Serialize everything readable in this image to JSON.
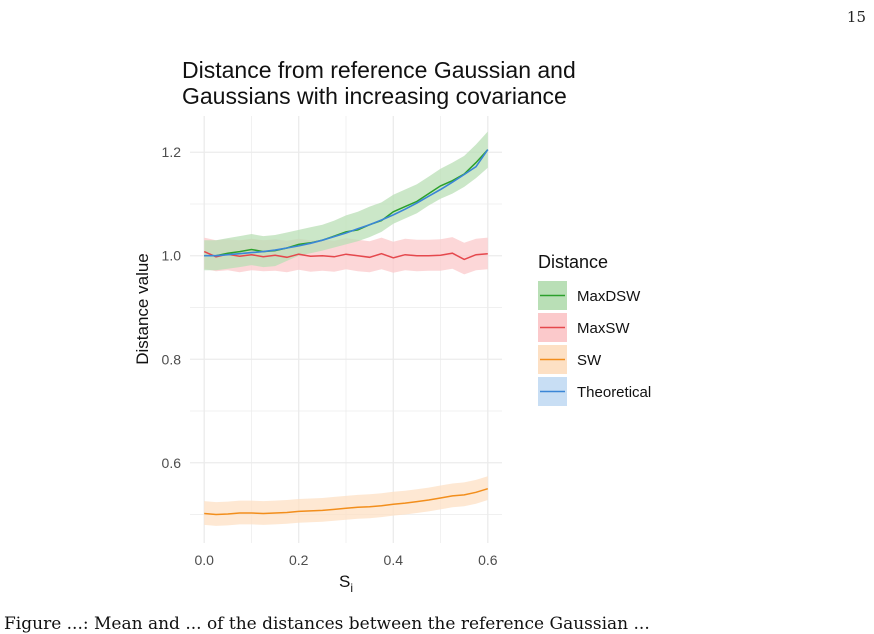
{
  "page": {
    "page_number": "15",
    "caption_fragment": "Figure ...: Mean and ... of the distances between the reference Gaussian ..."
  },
  "colors": {
    "MaxDSW": "#2ca02c",
    "MaxSW": "#e5484d",
    "SW": "#f28e1c",
    "Theoretical": "#3b86d6",
    "MaxDSW_band": "#b9dfb6",
    "MaxSW_band": "#fbc9cb",
    "SW_band": "#fde0c4",
    "Theoretical_band": "#c8def4",
    "grid": "#ebebeb"
  },
  "chart_data": {
    "type": "line",
    "title": [
      "Distance from reference Gaussian and",
      "Gaussians with increasing covariance"
    ],
    "xlabel": "S",
    "xlabel_sub": "i",
    "ylabel": "Distance value",
    "xlim": [
      -0.03,
      0.63
    ],
    "ylim": [
      0.445,
      1.27
    ],
    "xticks": [
      0.0,
      0.2,
      0.4,
      0.6
    ],
    "xtick_labels": [
      "0.0",
      "0.2",
      "0.4",
      "0.6"
    ],
    "yticks": [
      0.6,
      0.8,
      1.0,
      1.2
    ],
    "ytick_labels": [
      "0.6",
      "0.8",
      "1.0",
      "1.2"
    ],
    "grid": true,
    "legend": {
      "title": "Distance",
      "placement": "right"
    },
    "x": [
      0.0,
      0.025,
      0.05,
      0.075,
      0.1,
      0.125,
      0.15,
      0.175,
      0.2,
      0.225,
      0.25,
      0.275,
      0.3,
      0.325,
      0.35,
      0.375,
      0.4,
      0.425,
      0.45,
      0.475,
      0.5,
      0.525,
      0.55,
      0.575,
      0.6
    ],
    "series": [
      {
        "name": "MaxDSW",
        "values": [
          1.0,
          1.0,
          1.005,
          1.008,
          1.012,
          1.008,
          1.01,
          1.015,
          1.022,
          1.025,
          1.03,
          1.038,
          1.046,
          1.05,
          1.06,
          1.068,
          1.085,
          1.095,
          1.105,
          1.12,
          1.135,
          1.145,
          1.158,
          1.18,
          1.205
        ],
        "lower": [
          0.972,
          0.972,
          0.975,
          0.978,
          0.982,
          0.978,
          0.98,
          0.99,
          1.0,
          1.005,
          1.01,
          1.016,
          1.022,
          1.028,
          1.036,
          1.046,
          1.062,
          1.072,
          1.082,
          1.097,
          1.11,
          1.12,
          1.133,
          1.15,
          1.17
        ],
        "upper": [
          1.03,
          1.03,
          1.034,
          1.038,
          1.042,
          1.038,
          1.04,
          1.045,
          1.05,
          1.055,
          1.06,
          1.068,
          1.078,
          1.085,
          1.095,
          1.103,
          1.118,
          1.128,
          1.138,
          1.153,
          1.168,
          1.18,
          1.193,
          1.215,
          1.24
        ]
      },
      {
        "name": "MaxSW",
        "values": [
          1.008,
          0.998,
          1.003,
          0.999,
          1.002,
          0.998,
          1.001,
          0.997,
          1.003,
          0.999,
          1.0,
          0.998,
          1.003,
          1.0,
          0.997,
          1.004,
          0.996,
          1.002,
          1.0,
          1.0,
          1.001,
          1.005,
          0.993,
          1.002,
          1.004
        ],
        "lower": [
          0.975,
          0.97,
          0.972,
          0.968,
          0.972,
          0.97,
          0.971,
          0.968,
          0.973,
          0.969,
          0.971,
          0.969,
          0.974,
          0.97,
          0.968,
          0.974,
          0.967,
          0.972,
          0.97,
          0.971,
          0.971,
          0.975,
          0.964,
          0.972,
          0.974
        ],
        "upper": [
          1.035,
          1.03,
          1.032,
          1.03,
          1.033,
          1.03,
          1.032,
          1.029,
          1.033,
          1.03,
          1.031,
          1.029,
          1.034,
          1.031,
          1.028,
          1.035,
          1.027,
          1.033,
          1.031,
          1.031,
          1.032,
          1.036,
          1.025,
          1.033,
          1.035
        ]
      },
      {
        "name": "SW",
        "values": [
          0.502,
          0.5,
          0.501,
          0.503,
          0.503,
          0.502,
          0.503,
          0.504,
          0.506,
          0.507,
          0.508,
          0.51,
          0.512,
          0.514,
          0.515,
          0.517,
          0.52,
          0.522,
          0.525,
          0.528,
          0.532,
          0.536,
          0.538,
          0.543,
          0.55
        ],
        "lower": [
          0.48,
          0.478,
          0.479,
          0.481,
          0.481,
          0.48,
          0.481,
          0.482,
          0.484,
          0.485,
          0.486,
          0.488,
          0.49,
          0.492,
          0.493,
          0.495,
          0.498,
          0.5,
          0.503,
          0.506,
          0.51,
          0.514,
          0.516,
          0.521,
          0.528
        ],
        "upper": [
          0.526,
          0.524,
          0.525,
          0.527,
          0.527,
          0.526,
          0.527,
          0.528,
          0.53,
          0.531,
          0.532,
          0.534,
          0.536,
          0.538,
          0.539,
          0.541,
          0.544,
          0.546,
          0.549,
          0.552,
          0.556,
          0.56,
          0.562,
          0.567,
          0.574
        ]
      },
      {
        "name": "Theoretical",
        "values": [
          1.0,
          1.0,
          1.002,
          1.004,
          1.006,
          1.008,
          1.011,
          1.015,
          1.019,
          1.024,
          1.03,
          1.037,
          1.044,
          1.052,
          1.06,
          1.069,
          1.079,
          1.09,
          1.102,
          1.115,
          1.128,
          1.142,
          1.157,
          1.172,
          1.205
        ]
      }
    ]
  }
}
